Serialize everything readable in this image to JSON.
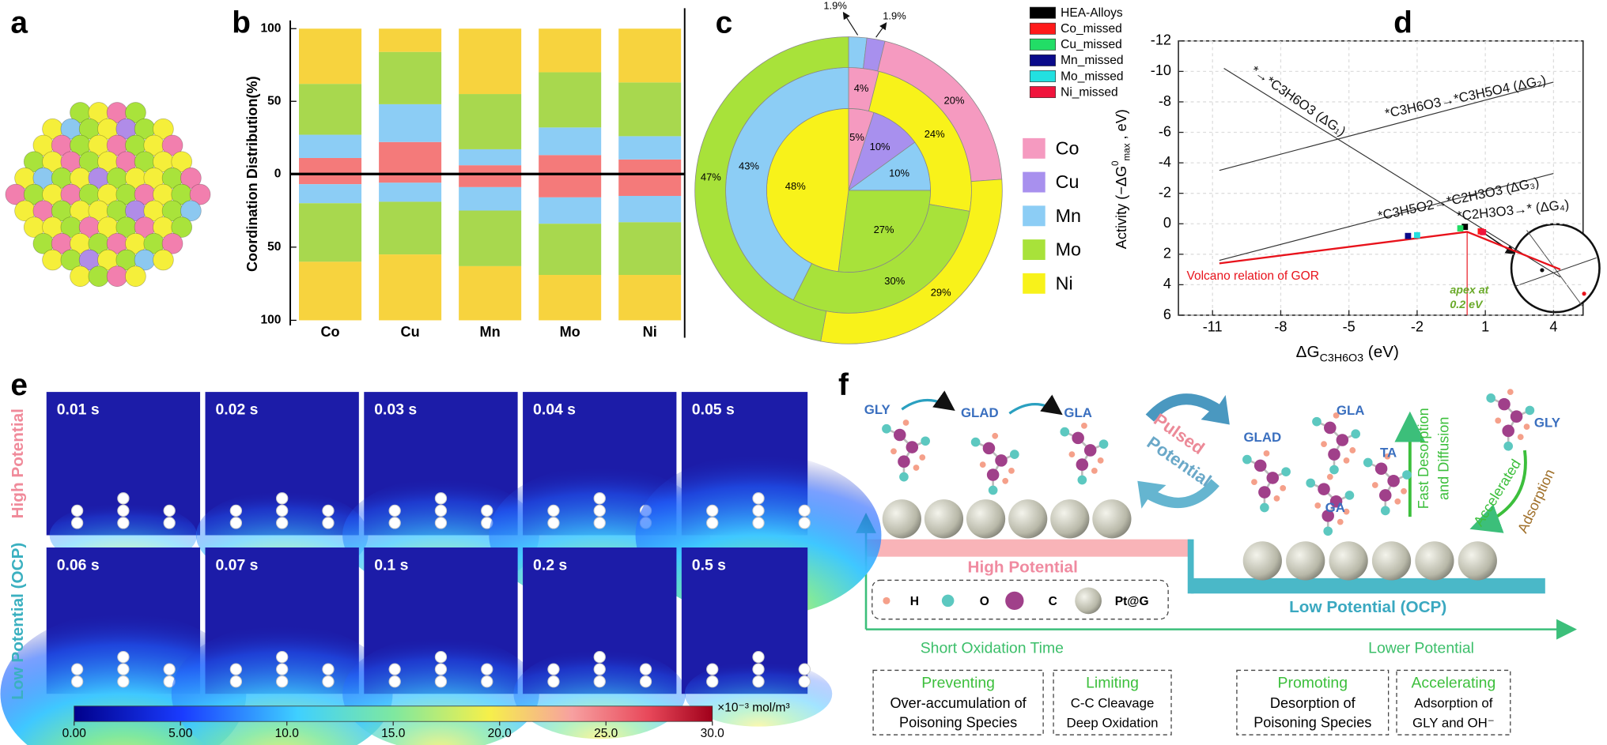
{
  "panel_labels": [
    "a",
    "b",
    "c",
    "d",
    "e",
    "f"
  ],
  "chart_data": [
    {
      "type": "bar",
      "ylabel": "Coordination Distribution(%)",
      "categories": [
        "Co",
        "Cu",
        "Mn",
        "Mo",
        "Ni"
      ],
      "ylim": [
        0,
        100
      ],
      "yticks": [
        100,
        50,
        0
      ],
      "yticks_below": [
        50,
        100
      ],
      "series": [
        {
          "color": "#f47a7a",
          "values": [
            11,
            22,
            6,
            13,
            10
          ]
        },
        {
          "color": "#8ccdf5",
          "values": [
            16,
            26,
            11,
            19,
            16
          ]
        },
        {
          "color": "#a8d84e",
          "values": [
            35,
            36,
            38,
            38,
            37
          ]
        },
        {
          "color": "#f7d33e",
          "values": [
            38,
            16,
            45,
            30,
            37
          ]
        }
      ],
      "series_below": [
        {
          "color": "#f47a7a",
          "values": [
            7,
            6,
            9,
            16,
            15
          ]
        },
        {
          "color": "#8ccdf5",
          "values": [
            13,
            13,
            16,
            18,
            18
          ]
        },
        {
          "color": "#a8d84e",
          "values": [
            40,
            36,
            38,
            35,
            36
          ]
        },
        {
          "color": "#f7d33e",
          "values": [
            40,
            45,
            37,
            31,
            31
          ]
        }
      ]
    },
    {
      "type": "pie",
      "legend": {
        "labels": [
          "Co",
          "Cu",
          "Mn",
          "Mo",
          "Ni"
        ],
        "colors": [
          "#f59ac0",
          "#a890ee",
          "#8ccdf5",
          "#a8e23a",
          "#f8f21a"
        ]
      },
      "rings": [
        {
          "categories": [
            "Co",
            "Cu",
            "Mn",
            "Mo",
            "Ni"
          ],
          "values": [
            5,
            10,
            10,
            27,
            48
          ],
          "value_labels": [
            "5%",
            "10%",
            "10%",
            "27%",
            "48%"
          ]
        },
        {
          "categories": [
            "Co",
            "Ni",
            "Mo",
            "Mn"
          ],
          "values": [
            4,
            24,
            30,
            43
          ],
          "value_labels": [
            "4%",
            "24%",
            "30%",
            "43%"
          ]
        },
        {
          "categories": [
            "Mn",
            "Cu",
            "Co",
            "Ni",
            "Mo"
          ],
          "values": [
            1.9,
            1.9,
            20,
            29,
            47
          ],
          "value_labels": [
            "1.9%",
            "1.9%",
            "20%",
            "29%",
            "47%"
          ]
        }
      ]
    },
    {
      "type": "line",
      "ylabel": [
        "Activity (−ΔG",
        "0",
        "max",
        " ,  eV)"
      ],
      "xlabel": [
        "ΔG",
        "C3H6O3",
        "  (eV)"
      ],
      "xlim": [
        -12.5,
        5.3
      ],
      "xticks": [
        -11,
        -8,
        -5,
        -2,
        1,
        4
      ],
      "ylim": [
        -12,
        6
      ],
      "yticks": [
        -12,
        -10,
        -8,
        -6,
        -4,
        -2,
        0,
        2,
        4,
        6
      ],
      "invert_y": true,
      "grid": true,
      "lines": [
        {
          "color": "#333333",
          "x": [
            -10.5,
            4.3
          ],
          "values": [
            -10.2,
            3.5
          ]
        },
        {
          "color": "#333333",
          "x": [
            -10.7,
            4
          ],
          "values": [
            -3.5,
            -9.3
          ]
        },
        {
          "color": "#333333",
          "x": [
            -10.7,
            4
          ],
          "values": [
            2.4,
            -3.3
          ]
        },
        {
          "color": "#e8121b",
          "x": [
            -10.7,
            0.2,
            4.3
          ],
          "values": [
            2.6,
            0.53,
            3.0
          ]
        }
      ],
      "points": [
        {
          "name": "HEA-Alloys",
          "color": "#000000",
          "x": [
            0.1
          ],
          "values": [
            0.2
          ]
        },
        {
          "name": "Co_missed",
          "color": "#ff1a1a",
          "x": [
            0.8
          ],
          "values": [
            0.5
          ]
        },
        {
          "name": "Cu_missed",
          "color": "#22dd66",
          "x": [
            -0.1
          ],
          "values": [
            0.3
          ]
        },
        {
          "name": "Mn_missed",
          "color": "#0a0a8a",
          "x": [
            -2.4
          ],
          "values": [
            0.8
          ]
        },
        {
          "name": "Mo_missed",
          "color": "#22e0e0",
          "x": [
            -2.0
          ],
          "values": [
            0.75
          ]
        },
        {
          "name": "Ni_missed",
          "color": "#f0143c",
          "x": [
            0.9
          ],
          "values": [
            0.55
          ]
        }
      ],
      "annotations": [
        "*→*C3H6O3 (ΔG₁)",
        "*C3H6O3→*C3H5O4 (ΔG₂)",
        "*C3H5O2→*C2H3O3 (ΔG₃)",
        "*C2H3O3→* (ΔG₄)",
        "Volcano relation of GOR",
        "apex at",
        "0.2 eV"
      ]
    }
  ],
  "e": {
    "times": [
      "0.01 s",
      "0.02 s",
      "0.03 s",
      "0.04 s",
      "0.05 s",
      "0.06 s",
      "0.07 s",
      "0.1 s",
      "0.2 s",
      "0.5 s"
    ],
    "row_labels": [
      "High Potential",
      "Low Potential (OCP)"
    ],
    "colorbar": {
      "lim": [
        0,
        30
      ],
      "ticks": [
        {
          "value": 0,
          "label": "0.00"
        },
        {
          "value": 5,
          "label": "5.00"
        },
        {
          "value": 10,
          "label": "10.0"
        },
        {
          "value": 15,
          "label": "15.0"
        },
        {
          "value": 20,
          "label": "20.0"
        },
        {
          "value": 25,
          "label": "25.0"
        },
        {
          "value": 30,
          "label": "30.0"
        }
      ],
      "unit": "×10⁻³  mol/m³"
    }
  },
  "f": {
    "molecules": [
      "GLY",
      "GLAD",
      "GLA",
      "GLAD",
      "GLA",
      "TA",
      "GA",
      "GLY"
    ],
    "pulsed": [
      "Pulsed",
      "Potential"
    ],
    "fast": [
      "Fast Desorption",
      "and Diffusion"
    ],
    "accelerated": "Accelerated",
    "adsorption": "Adsorption",
    "high": "High Potential",
    "low": "Low Potential (OCP)",
    "legend": [
      "H",
      "O",
      "C",
      "Pt@G"
    ],
    "axis_labels": [
      "Short Oxidation Time",
      "Lower Potential"
    ],
    "boxes": [
      {
        "title": "Preventing",
        "lines": [
          "Over-accumulation of",
          "Poisoning Species"
        ]
      },
      {
        "title": "Limiting",
        "lines": [
          "C-C Cleavage",
          "Deep Oxidation"
        ]
      },
      {
        "title": "Promoting",
        "lines": [
          "Desorption of",
          "Poisoning Species"
        ]
      },
      {
        "title": "Accelerating",
        "lines": [
          "Adsorption of",
          "GLY and OH⁻"
        ]
      }
    ]
  }
}
